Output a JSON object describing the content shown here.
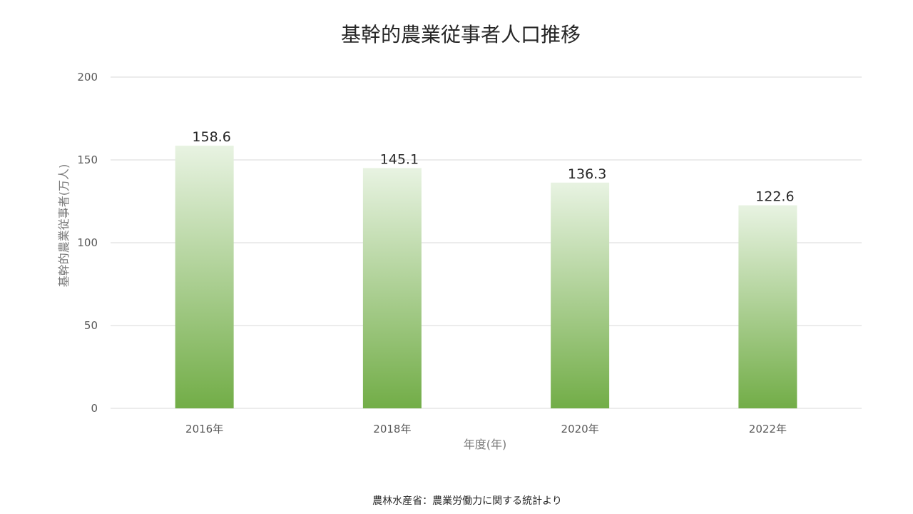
{
  "chart_data": {
    "type": "bar",
    "title": "基幹的農業従事者人口推移",
    "xlabel": "年度(年)",
    "ylabel": "基幹的農業従事者(万人)",
    "categories": [
      "2016年",
      "2018年",
      "2020年",
      "2022年"
    ],
    "values": [
      158.6,
      145.1,
      136.3,
      122.6
    ],
    "data_labels": [
      "158.6",
      "145.1",
      "136.3",
      "122.6"
    ],
    "ylim": [
      0,
      200
    ],
    "yticks": [
      0,
      50,
      100,
      150,
      200
    ],
    "ytick_labels": [
      "0",
      "50",
      "100",
      "150",
      "200"
    ],
    "grid": true,
    "legend": "none",
    "bar_color_top": "#e8f3e2",
    "bar_color_bottom": "#72ad47"
  },
  "footer": {
    "source": "農林水産省：農業労働力に関する統計より"
  }
}
